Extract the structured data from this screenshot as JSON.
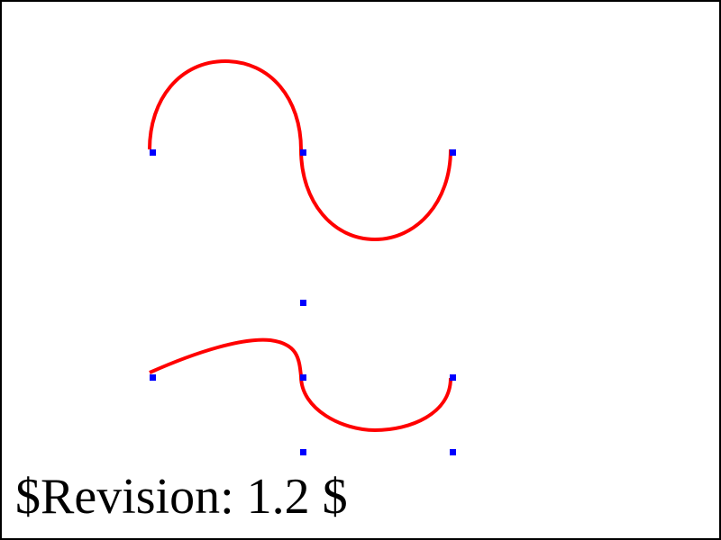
{
  "revision_label": "$Revision: 1.2 $",
  "colors": {
    "background": "#ffffff",
    "border": "#000000",
    "curve": "#ff0000",
    "control_point": "#0000ff",
    "text": "#000000"
  }
}
